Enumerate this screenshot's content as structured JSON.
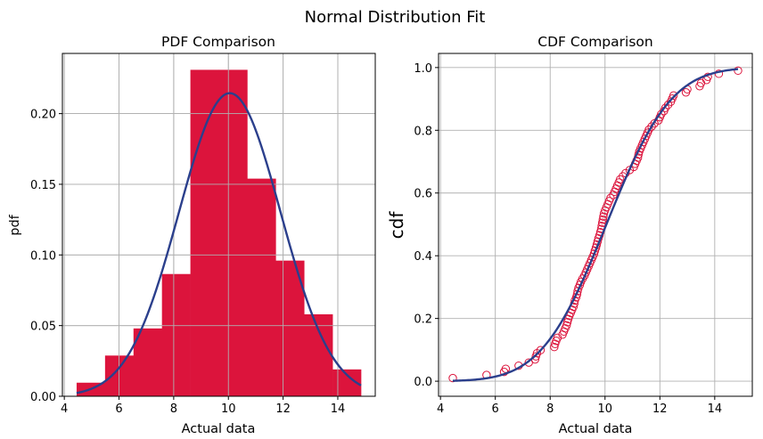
{
  "figure_title": "Normal Distribution Fit",
  "colors": {
    "bars": "#DC143C",
    "points": "#DC143C",
    "fit_line": "#2B3F8C",
    "grid": "#B0B0B0"
  },
  "chart_data": [
    {
      "type": "bar",
      "title": "PDF Comparison",
      "xlabel": "Actual data",
      "ylabel": "pdf",
      "xlim": [
        3.93,
        15.37
      ],
      "ylim": [
        0,
        0.2426
      ],
      "grid": true,
      "xticks": [
        4,
        6,
        8,
        10,
        12,
        14
      ],
      "yticks": [
        0.0,
        0.05,
        0.1,
        0.15,
        0.2
      ],
      "ytick_labels": [
        "0.00",
        "0.05",
        "0.10",
        "0.15",
        "0.20"
      ],
      "bin_edges": [
        4.45,
        5.49,
        6.53,
        7.57,
        8.61,
        9.65,
        10.69,
        11.73,
        12.77,
        13.81,
        14.85
      ],
      "values": [
        0.0096,
        0.0288,
        0.048,
        0.0865,
        0.231,
        0.231,
        0.154,
        0.096,
        0.058,
        0.019
      ],
      "fit": {
        "distribution": "normal",
        "mean": 10.05,
        "std": 1.86,
        "x_range": [
          4.45,
          14.85
        ]
      }
    },
    {
      "type": "scatter",
      "title": "CDF Comparison",
      "xlabel": "Actual data",
      "ylabel": "cdf",
      "xlim": [
        3.93,
        15.37
      ],
      "ylim": [
        -0.048,
        1.045
      ],
      "grid": true,
      "xticks": [
        4,
        6,
        8,
        10,
        12,
        14
      ],
      "yticks": [
        0.0,
        0.2,
        0.4,
        0.6,
        0.8,
        1.0
      ],
      "ytick_labels": [
        "0.0",
        "0.2",
        "0.4",
        "0.6",
        "0.8",
        "1.0"
      ],
      "x": [
        4.45,
        5.68,
        6.32,
        6.38,
        6.85,
        7.22,
        7.45,
        7.48,
        7.52,
        7.65,
        8.15,
        8.18,
        8.22,
        8.27,
        8.45,
        8.5,
        8.55,
        8.6,
        8.63,
        8.66,
        8.7,
        8.75,
        8.8,
        8.85,
        8.88,
        8.9,
        8.95,
        8.98,
        9.0,
        9.03,
        9.08,
        9.12,
        9.18,
        9.25,
        9.3,
        9.35,
        9.4,
        9.45,
        9.5,
        9.55,
        9.6,
        9.63,
        9.67,
        9.7,
        9.73,
        9.76,
        9.8,
        9.83,
        9.86,
        9.88,
        9.9,
        9.92,
        9.94,
        9.96,
        10.0,
        10.05,
        10.1,
        10.15,
        10.2,
        10.3,
        10.35,
        10.4,
        10.45,
        10.5,
        10.55,
        10.65,
        10.75,
        10.9,
        11.05,
        11.1,
        11.15,
        11.2,
        11.22,
        11.25,
        11.3,
        11.35,
        11.4,
        11.45,
        11.5,
        11.55,
        11.6,
        11.7,
        11.8,
        11.95,
        12.0,
        12.05,
        12.15,
        12.2,
        12.3,
        12.4,
        12.45,
        12.5,
        12.95,
        13.0,
        13.45,
        13.5,
        13.7,
        13.75,
        14.15,
        14.85
      ],
      "y_rule": "empirical cdf (rank / (n+1))",
      "fit": {
        "distribution": "normal",
        "mean": 10.05,
        "std": 1.86,
        "x_range": [
          4.45,
          14.85
        ]
      }
    }
  ]
}
